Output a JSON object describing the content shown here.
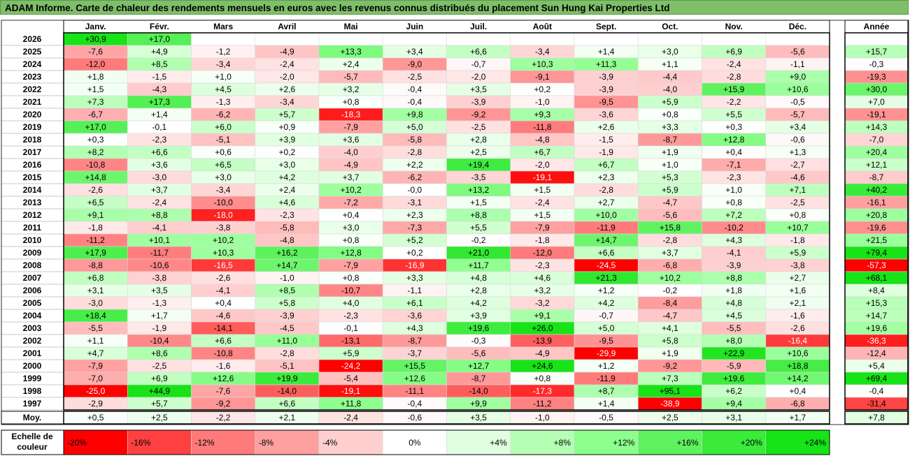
{
  "title": "ADAM Informe. Carte de chaleur des rendements mensuels en euros avec les revenus connus distribués du placement Sun Hung Kai Properties Ltd",
  "chart_data": {
    "type": "heatmap",
    "months": [
      "Janv.",
      "Févr.",
      "Mars",
      "Avril",
      "Mai",
      "Juin",
      "Juil.",
      "Août",
      "Sept.",
      "Oct.",
      "Nov.",
      "Déc."
    ],
    "year_header": "Année",
    "years": [
      "2026",
      "2025",
      "2024",
      "2023",
      "2022",
      "2021",
      "2020",
      "2019",
      "2018",
      "2017",
      "2016",
      "2015",
      "2014",
      "2013",
      "2012",
      "2011",
      "2010",
      "2009",
      "2008",
      "2007",
      "2006",
      "2005",
      "2004",
      "2003",
      "2002",
      "2001",
      "2000",
      "1999",
      "1998",
      "1997"
    ],
    "values": [
      [
        30.9,
        17.0,
        null,
        null,
        null,
        null,
        null,
        null,
        null,
        null,
        null,
        null
      ],
      [
        -7.6,
        4.9,
        -1.2,
        -4.9,
        13.3,
        3.4,
        6.6,
        -3.4,
        1.4,
        3.0,
        6.9,
        -5.6
      ],
      [
        -12.0,
        8.5,
        -3.4,
        -2.4,
        2.4,
        -9.0,
        -0.7,
        10.3,
        11.3,
        1.1,
        -2.4,
        -1.1
      ],
      [
        1.8,
        -1.5,
        1.0,
        -2.0,
        -5.7,
        -2.5,
        -2.0,
        -9.1,
        -3.9,
        -4.4,
        -2.8,
        9.0
      ],
      [
        1.5,
        -4.3,
        4.5,
        2.6,
        3.2,
        -0.4,
        3.5,
        0.2,
        -3.9,
        -4.0,
        15.9,
        10.6
      ],
      [
        7.3,
        17.3,
        -1.3,
        -3.4,
        0.8,
        -0.4,
        -3.9,
        -1.0,
        -9.5,
        5.9,
        -2.2,
        -0.5
      ],
      [
        -6.7,
        1.4,
        -6.2,
        5.7,
        -18.3,
        9.8,
        -9.2,
        9.3,
        -3.6,
        0.8,
        5.5,
        -5.7
      ],
      [
        17.0,
        -0.1,
        6.0,
        0.9,
        -7.9,
        5.0,
        -2.5,
        -11.8,
        2.6,
        3.3,
        0.3,
        3.4
      ],
      [
        0.3,
        -2.3,
        -5.1,
        3.9,
        3.6,
        -5.8,
        2.8,
        -4.8,
        -1.5,
        -8.7,
        12.8,
        -0.6
      ],
      [
        8.2,
        6.6,
        0.6,
        0.2,
        -4.0,
        -2.8,
        2.5,
        6.7,
        -1.9,
        1.9,
        0.4,
        1.3
      ],
      [
        -10.8,
        3.6,
        6.5,
        3.0,
        -4.9,
        2.2,
        19.4,
        -2.0,
        6.7,
        1.0,
        -7.1,
        -2.7
      ],
      [
        14.8,
        -3.0,
        3.0,
        4.2,
        3.7,
        -6.2,
        -3.5,
        -19.1,
        2.3,
        5.3,
        -2.3,
        -4.6
      ],
      [
        -2.6,
        3.7,
        -3.4,
        2.4,
        10.2,
        -0.0,
        13.2,
        1.5,
        -2.8,
        5.9,
        1.0,
        7.1
      ],
      [
        6.5,
        -2.4,
        -10.0,
        4.6,
        -7.2,
        -3.1,
        1.5,
        -2.4,
        2.7,
        -4.7,
        0.8,
        -2.5
      ],
      [
        9.1,
        8.8,
        -18.0,
        -2.3,
        0.4,
        2.3,
        8.8,
        1.5,
        10.0,
        -5.6,
        7.2,
        0.8
      ],
      [
        -1.8,
        -4.1,
        -3.8,
        -5.8,
        3.0,
        -7.3,
        5.5,
        -7.9,
        -11.9,
        15.8,
        -10.2,
        10.7
      ],
      [
        -11.2,
        10.1,
        10.2,
        -4.8,
        0.8,
        5.2,
        -0.2,
        -1.8,
        14.7,
        -2.8,
        4.3,
        -1.8
      ],
      [
        17.9,
        -11.7,
        10.3,
        16.2,
        12.8,
        0.2,
        21.0,
        -12.0,
        6.6,
        3.7,
        -4.1,
        5.9
      ],
      [
        -8.8,
        -10.6,
        -16.5,
        14.7,
        -7.9,
        -16.9,
        11.7,
        -2.3,
        -24.5,
        -6.8,
        -3.9,
        -3.8
      ],
      [
        6.8,
        -3.8,
        -2.6,
        -1.0,
        0.8,
        3.3,
        4.8,
        4.6,
        21.3,
        10.2,
        8.8,
        2.7
      ],
      [
        3.1,
        3.5,
        -4.1,
        8.5,
        -10.7,
        -1.1,
        2.8,
        3.2,
        1.2,
        -0.2,
        1.8,
        1.6
      ],
      [
        -3.0,
        -1.3,
        0.4,
        5.8,
        4.0,
        6.1,
        4.2,
        -3.2,
        4.2,
        -8.4,
        4.8,
        2.1
      ],
      [
        18.4,
        1.7,
        -4.6,
        -3.9,
        -2.3,
        -3.6,
        3.9,
        9.1,
        -0.7,
        -4.7,
        4.5,
        -1.6
      ],
      [
        -5.5,
        -1.9,
        -14.1,
        -4.5,
        -0.1,
        4.3,
        19.6,
        26.0,
        5.0,
        4.1,
        -5.5,
        -2.6
      ],
      [
        1.1,
        -10.4,
        6.6,
        11.0,
        -13.1,
        -8.7,
        -0.3,
        -13.9,
        -9.5,
        5.8,
        8.0,
        -16.4
      ],
      [
        4.7,
        8.6,
        -10.8,
        -2.8,
        5.9,
        -3.7,
        -5.6,
        -4.9,
        -29.9,
        1.9,
        22.9,
        10.6
      ],
      [
        -7.9,
        -2.5,
        -1.6,
        -5.1,
        -24.2,
        15.5,
        12.7,
        24.6,
        1.2,
        -9.2,
        -5.9,
        18.8
      ],
      [
        -7.0,
        6.9,
        12.6,
        19.9,
        -5.4,
        12.6,
        -8.7,
        0.8,
        -11.9,
        7.3,
        19.6,
        14.2
      ],
      [
        -25.0,
        44.9,
        -7.6,
        -14.0,
        -19.1,
        -11.1,
        -14.0,
        -17.3,
        8.7,
        95.1,
        6.2,
        0.4
      ],
      [
        -2.9,
        5.7,
        -9.2,
        6.6,
        11.8,
        -0.4,
        9.9,
        -11.2,
        1.4,
        -38.9,
        9.4,
        -6.8
      ]
    ],
    "annual": [
      null,
      15.7,
      -0.3,
      -19.3,
      30.0,
      7.0,
      -19.1,
      14.3,
      -7.0,
      20.4,
      12.1,
      -8.7,
      40.2,
      -16.1,
      20.8,
      -19.6,
      21.5,
      79.4,
      -57.3,
      68.1,
      8.4,
      15.3,
      14.7,
      19.6,
      -36.3,
      -12.4,
      5.4,
      69.4,
      -0.4,
      -31.4
    ],
    "avg_label": "Moy.",
    "monthly_avg": [
      0.5,
      2.5,
      -2.2,
      2.1,
      -2.4,
      -0.6,
      3.5,
      -1.0,
      -0.5,
      2.5,
      3.1,
      1.7
    ],
    "annual_avg": 7.8,
    "scale_label": "Echelle de couleur",
    "scale": [
      {
        "value": -20,
        "label": "-20%",
        "color": "#ff0000"
      },
      {
        "value": -16,
        "label": "-16%",
        "color": "#ff4040"
      },
      {
        "value": -12,
        "label": "-12%",
        "color": "#ff7a7a"
      },
      {
        "value": -8,
        "label": "-8%",
        "color": "#ffa0a0"
      },
      {
        "value": -4,
        "label": "-4%",
        "color": "#ffcfcf"
      },
      {
        "value": 0,
        "label": "0%",
        "color": "#ffffff"
      },
      {
        "value": 4,
        "label": "+4%",
        "color": "#e0ffe0"
      },
      {
        "value": 8,
        "label": "+8%",
        "color": "#b4ffb4"
      },
      {
        "value": 12,
        "label": "+12%",
        "color": "#8cff8c"
      },
      {
        "value": 16,
        "label": "+16%",
        "color": "#5ef25e"
      },
      {
        "value": 20,
        "label": "+20%",
        "color": "#3aeb3a"
      },
      {
        "value": 24,
        "label": "+24%",
        "color": "#17e317"
      }
    ]
  }
}
